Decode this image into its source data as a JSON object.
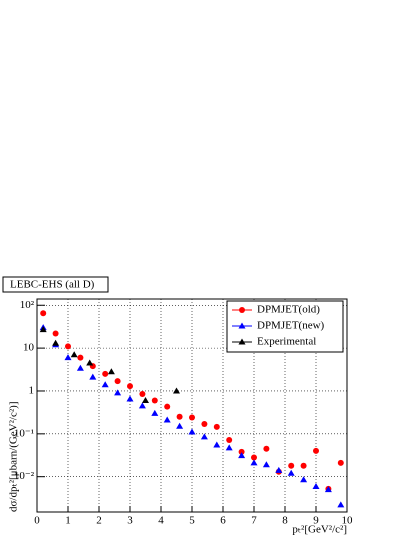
{
  "chart_data": {
    "type": "scatter",
    "title": "LEBC-EHS (all D)",
    "x_label": "pₜ²[GeV²/c²]",
    "y_label": "dσ/dpₜ²[μbarn/(GeV²/c²)]",
    "xlim": [
      0,
      10
    ],
    "xticks": [
      0,
      1,
      2,
      3,
      4,
      5,
      6,
      7,
      8,
      9,
      10
    ],
    "ylim": [
      0.0015,
      140
    ],
    "log_y": true,
    "grid": true,
    "legend": "upper right",
    "yticks": [
      {
        "value": 0.01,
        "label": "10⁻²"
      },
      {
        "value": 0.1,
        "label": "10⁻¹"
      },
      1,
      10,
      {
        "value": 100,
        "label": "10²"
      }
    ],
    "series": [
      {
        "name": "DPMJET(old)",
        "color": "#ff0000",
        "marker": "circle",
        "x": [
          0.2,
          0.6,
          1.0,
          1.4,
          1.8,
          2.2,
          2.6,
          3.0,
          3.4,
          3.8,
          4.2,
          4.6,
          5.0,
          5.4,
          5.8,
          6.2,
          6.6,
          7.0,
          7.4,
          7.8,
          8.2,
          8.6,
          9.0,
          9.4,
          9.8
        ],
        "values": [
          65,
          22,
          11,
          6,
          3.8,
          2.5,
          1.7,
          1.3,
          0.85,
          0.6,
          0.43,
          0.25,
          0.24,
          0.17,
          0.145,
          0.072,
          0.038,
          0.028,
          0.045,
          0.013,
          0.018,
          0.018,
          0.04,
          0.0052,
          0.021
        ]
      },
      {
        "name": "DPMJET(new)",
        "color": "#0000ff",
        "marker": "triangle",
        "x": [
          0.2,
          0.6,
          1.0,
          1.4,
          1.8,
          2.2,
          2.6,
          3.0,
          3.4,
          3.8,
          4.2,
          4.6,
          5.0,
          5.4,
          5.8,
          6.2,
          6.6,
          7.0,
          7.4,
          7.8,
          8.2,
          8.6,
          9.0,
          9.4,
          9.8
        ],
        "values": [
          30,
          12,
          6,
          3.4,
          2.1,
          1.4,
          0.9,
          0.65,
          0.45,
          0.3,
          0.21,
          0.15,
          0.11,
          0.085,
          0.055,
          0.047,
          0.031,
          0.021,
          0.019,
          0.014,
          0.012,
          0.0085,
          0.0059,
          0.005,
          0.0022
        ]
      },
      {
        "name": "Experimental",
        "color": "#000000",
        "marker": "triangle",
        "x": [
          0.2,
          0.6,
          1.2,
          1.7,
          2.4,
          3.5,
          4.5
        ],
        "values": [
          27,
          13,
          7,
          4.5,
          2.8,
          0.6,
          1.0
        ]
      }
    ]
  }
}
